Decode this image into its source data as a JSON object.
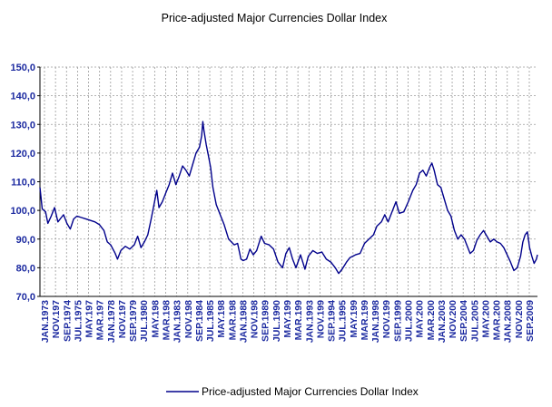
{
  "chart_data": {
    "type": "line",
    "title": "Price-adjusted Major Currencies Dollar Index",
    "xlabel": "",
    "ylabel": "",
    "ylim": [
      70,
      150
    ],
    "yticks": [
      "70,0",
      "80,0",
      "90,0",
      "100,0",
      "110,0",
      "120,0",
      "130,0",
      "140,0",
      "150,0"
    ],
    "grid": true,
    "legend_position": "bottom",
    "x_range": [
      "1973-01",
      "2009-12"
    ],
    "xtick_labels": [
      "JAN.1973",
      "NOV.197",
      "SEP.1974",
      "JUL.1975",
      "MAY.197",
      "MAR.197",
      "JAN.1978",
      "NOV.197",
      "SEP.1979",
      "JUL.1980",
      "MAY.198",
      "MAR.198",
      "JAN.1983",
      "NOV.198",
      "SEP.1984",
      "JUL.1985",
      "MAY.198",
      "MAR.198",
      "JAN.1988",
      "NOV.198",
      "SEP.1989",
      "JUL.1990",
      "MAY.199",
      "MAR.199",
      "JAN.1993",
      "NOV.199",
      "SEP.1994",
      "JUL.1995",
      "MAY.199",
      "MAR.199",
      "JAN.1998",
      "NOV.199",
      "SEP.1999",
      "JUL.2000",
      "MAY.200",
      "MAR.200",
      "JAN.2003",
      "NOV.200",
      "SEP.2004",
      "JUL.2005",
      "MAY.200",
      "MAR.200",
      "JAN.2008",
      "NOV.200",
      "SEP.2009"
    ],
    "series": [
      {
        "name": "Price-adjusted Major Currencies Dollar Index",
        "color": "#00008b",
        "points": [
          [
            "1973-01",
            108
          ],
          [
            "1973-03",
            100.5
          ],
          [
            "1973-06",
            99.5
          ],
          [
            "1973-08",
            95.5
          ],
          [
            "1973-11",
            98
          ],
          [
            "1974-02",
            101
          ],
          [
            "1974-05",
            96
          ],
          [
            "1974-08",
            97.5
          ],
          [
            "1974-10",
            98.5
          ],
          [
            "1975-01",
            95.5
          ],
          [
            "1975-04",
            93.5
          ],
          [
            "1975-07",
            97
          ],
          [
            "1975-10",
            98
          ],
          [
            "1976-02",
            97.5
          ],
          [
            "1976-06",
            97
          ],
          [
            "1976-10",
            96.5
          ],
          [
            "1977-02",
            96
          ],
          [
            "1977-06",
            95
          ],
          [
            "1977-10",
            93
          ],
          [
            "1978-01",
            89
          ],
          [
            "1978-04",
            88
          ],
          [
            "1978-08",
            85
          ],
          [
            "1978-10",
            83
          ],
          [
            "1979-01",
            86
          ],
          [
            "1979-05",
            87.5
          ],
          [
            "1979-09",
            86.5
          ],
          [
            "1980-01",
            88
          ],
          [
            "1980-04",
            91
          ],
          [
            "1980-07",
            87
          ],
          [
            "1980-10",
            89
          ],
          [
            "1981-01",
            91.5
          ],
          [
            "1981-04",
            97
          ],
          [
            "1981-07",
            103
          ],
          [
            "1981-09",
            107
          ],
          [
            "1981-11",
            101
          ],
          [
            "1982-02",
            103
          ],
          [
            "1982-05",
            106
          ],
          [
            "1982-08",
            109
          ],
          [
            "1982-11",
            113
          ],
          [
            "1983-02",
            109
          ],
          [
            "1983-05",
            112
          ],
          [
            "1983-08",
            115.5
          ],
          [
            "1983-11",
            114
          ],
          [
            "1984-02",
            112
          ],
          [
            "1984-05",
            116
          ],
          [
            "1984-08",
            120
          ],
          [
            "1984-11",
            122
          ],
          [
            "1985-01",
            126
          ],
          [
            "1985-02",
            131
          ],
          [
            "1985-03",
            128
          ],
          [
            "1985-05",
            123
          ],
          [
            "1985-07",
            119
          ],
          [
            "1985-09",
            115
          ],
          [
            "1985-11",
            108
          ],
          [
            "1986-02",
            102
          ],
          [
            "1986-05",
            99
          ],
          [
            "1986-09",
            95
          ],
          [
            "1987-01",
            90
          ],
          [
            "1987-06",
            88
          ],
          [
            "1987-09",
            88.5
          ],
          [
            "1987-12",
            83
          ],
          [
            "1988-02",
            82.5
          ],
          [
            "1988-05",
            83
          ],
          [
            "1988-08",
            86.5
          ],
          [
            "1988-11",
            84.5
          ],
          [
            "1989-02",
            86
          ],
          [
            "1989-06",
            91
          ],
          [
            "1989-09",
            88.5
          ],
          [
            "1990-01",
            88
          ],
          [
            "1990-05",
            86.5
          ],
          [
            "1990-09",
            82
          ],
          [
            "1991-01",
            80
          ],
          [
            "1991-04",
            85
          ],
          [
            "1991-07",
            87
          ],
          [
            "1991-10",
            83
          ],
          [
            "1992-01",
            80
          ],
          [
            "1992-05",
            84.5
          ],
          [
            "1992-09",
            79.5
          ],
          [
            "1992-12",
            84
          ],
          [
            "1993-04",
            86
          ],
          [
            "1993-08",
            85
          ],
          [
            "1993-12",
            85.5
          ],
          [
            "1994-04",
            83
          ],
          [
            "1994-08",
            82
          ],
          [
            "1994-12",
            80
          ],
          [
            "1995-03",
            78
          ],
          [
            "1995-06",
            79.5
          ],
          [
            "1995-10",
            82
          ],
          [
            "1996-01",
            83.5
          ],
          [
            "1996-06",
            84.5
          ],
          [
            "1996-10",
            85
          ],
          [
            "1997-02",
            88.5
          ],
          [
            "1997-06",
            90
          ],
          [
            "1997-10",
            91.5
          ],
          [
            "1998-01",
            94.5
          ],
          [
            "1998-05",
            96
          ],
          [
            "1998-08",
            98.5
          ],
          [
            "1998-11",
            96
          ],
          [
            "1999-02",
            99
          ],
          [
            "1999-06",
            103
          ],
          [
            "1999-09",
            99
          ],
          [
            "2000-01",
            99.5
          ],
          [
            "2000-05",
            103
          ],
          [
            "2000-09",
            107
          ],
          [
            "2000-12",
            109
          ],
          [
            "2001-03",
            113
          ],
          [
            "2001-06",
            114
          ],
          [
            "2001-09",
            112
          ],
          [
            "2001-12",
            115
          ],
          [
            "2002-02",
            116.5
          ],
          [
            "2002-04",
            114
          ],
          [
            "2002-07",
            109
          ],
          [
            "2002-10",
            108
          ],
          [
            "2003-01",
            104
          ],
          [
            "2003-04",
            100
          ],
          [
            "2003-07",
            98
          ],
          [
            "2003-10",
            93
          ],
          [
            "2004-01",
            90
          ],
          [
            "2004-04",
            91.5
          ],
          [
            "2004-07",
            90
          ],
          [
            "2004-10",
            87
          ],
          [
            "2004-12",
            85
          ],
          [
            "2005-03",
            86
          ],
          [
            "2005-06",
            89.5
          ],
          [
            "2005-09",
            91.5
          ],
          [
            "2005-12",
            93
          ],
          [
            "2006-03",
            91
          ],
          [
            "2006-06",
            89
          ],
          [
            "2006-09",
            90
          ],
          [
            "2006-12",
            89
          ],
          [
            "2007-03",
            88.5
          ],
          [
            "2007-06",
            87
          ],
          [
            "2007-09",
            84.5
          ],
          [
            "2007-12",
            82
          ],
          [
            "2008-03",
            79
          ],
          [
            "2008-06",
            80
          ],
          [
            "2008-09",
            84
          ],
          [
            "2008-11",
            89
          ],
          [
            "2009-01",
            91.5
          ],
          [
            "2009-03",
            92.5
          ],
          [
            "2009-05",
            87
          ],
          [
            "2009-07",
            84
          ],
          [
            "2009-09",
            81.5
          ],
          [
            "2009-11",
            83
          ],
          [
            "2009-12",
            84.5
          ]
        ]
      }
    ]
  }
}
